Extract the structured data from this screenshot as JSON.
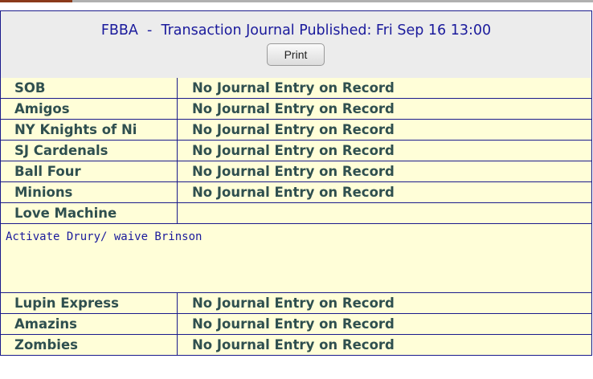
{
  "header": {
    "title": "FBBA  -  Transaction Journal Published: Fri Sep 16 13:00",
    "button": "Print"
  },
  "rows": [
    {
      "team": "SOB",
      "entry": "No Journal Entry on Record"
    },
    {
      "team": "Amigos",
      "entry": "No Journal Entry on Record"
    },
    {
      "team": "NY Knights of Ni",
      "entry": "No Journal Entry on Record"
    },
    {
      "team": "SJ Cardenals",
      "entry": "No Journal Entry on Record"
    },
    {
      "team": "Ball Four",
      "entry": "No Journal Entry on Record"
    },
    {
      "team": "Minions",
      "entry": "No Journal Entry on Record"
    },
    {
      "team": "Love Machine",
      "note": "Activate Drury/ waive Brinson"
    },
    {
      "team": "Lupin Express",
      "entry": "No Journal Entry on Record"
    },
    {
      "team": "Amazins",
      "entry": "No Journal Entry on Record"
    },
    {
      "team": "Zombies",
      "entry": "No Journal Entry on Record"
    }
  ]
}
